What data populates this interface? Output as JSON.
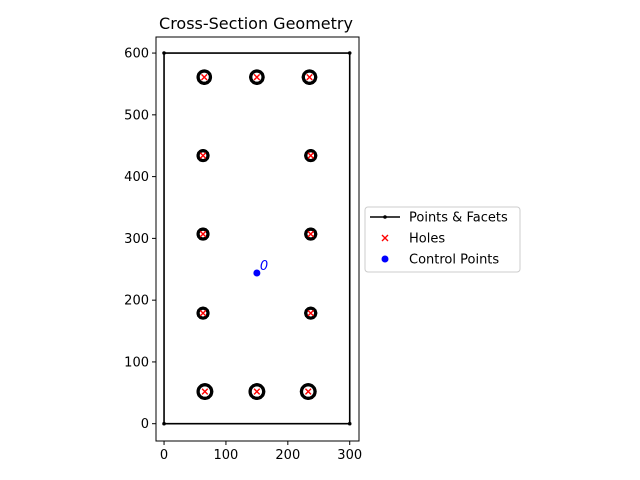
{
  "chart_data": {
    "type": "scatter",
    "title": "Cross-Section Geometry",
    "xlabel": "",
    "ylabel": "",
    "xlim": [
      -13,
      315
    ],
    "ylim": [
      -28,
      626
    ],
    "xticks": [
      0,
      100,
      200,
      300
    ],
    "yticks": [
      0,
      100,
      200,
      300,
      400,
      500,
      600
    ],
    "grid": false,
    "legend_position": "center-right",
    "colors": {
      "outline": "#000000",
      "holes": "#ff0000",
      "control": "#0000ff"
    },
    "outline": [
      [
        0,
        0
      ],
      [
        300,
        0
      ],
      [
        300,
        600
      ],
      [
        0,
        600
      ]
    ],
    "bars": [
      {
        "x": 66,
        "y": 52,
        "r": 11
      },
      {
        "x": 150,
        "y": 52,
        "r": 11
      },
      {
        "x": 233,
        "y": 52,
        "r": 11
      },
      {
        "x": 63,
        "y": 179,
        "r": 8
      },
      {
        "x": 237,
        "y": 179,
        "r": 8
      },
      {
        "x": 63,
        "y": 307,
        "r": 8
      },
      {
        "x": 237,
        "y": 307,
        "r": 8
      },
      {
        "x": 63,
        "y": 434,
        "r": 8
      },
      {
        "x": 237,
        "y": 434,
        "r": 8
      },
      {
        "x": 65,
        "y": 561,
        "r": 10
      },
      {
        "x": 150,
        "y": 561,
        "r": 10
      },
      {
        "x": 235,
        "y": 561,
        "r": 10
      }
    ],
    "holes": [
      [
        66,
        52
      ],
      [
        150,
        52
      ],
      [
        233,
        52
      ],
      [
        63,
        179
      ],
      [
        237,
        179
      ],
      [
        63,
        307
      ],
      [
        237,
        307
      ],
      [
        63,
        434
      ],
      [
        237,
        434
      ],
      [
        65,
        561
      ],
      [
        150,
        561
      ],
      [
        235,
        561
      ]
    ],
    "control_points": [
      {
        "x": 150,
        "y": 244,
        "label": "0"
      }
    ],
    "legend": [
      {
        "label": "Points & Facets",
        "marker": "line"
      },
      {
        "label": "Holes",
        "marker": "x"
      },
      {
        "label": "Control Points",
        "marker": "dot"
      }
    ]
  }
}
